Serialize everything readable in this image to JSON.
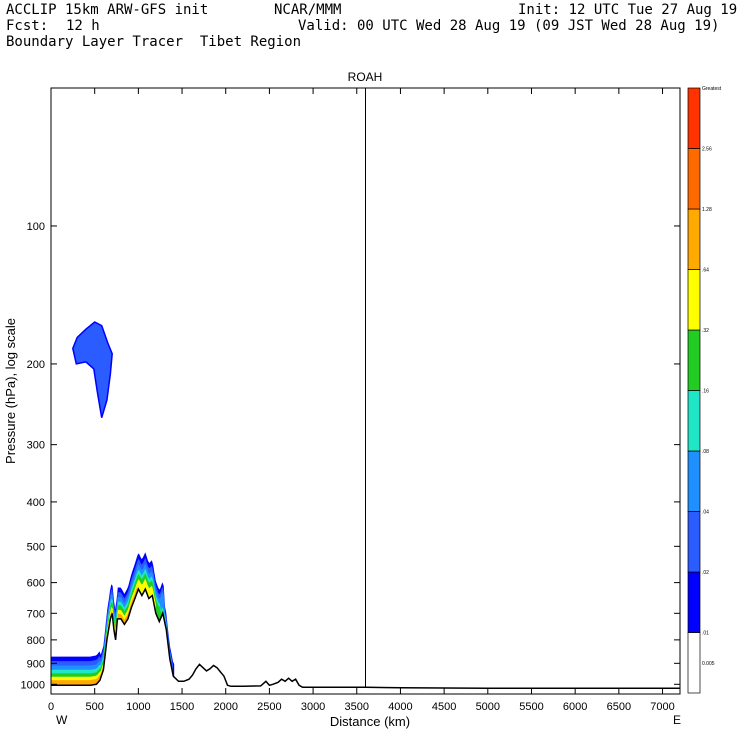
{
  "header": {
    "model": "ACCLIP 15km ARW-GFS init",
    "org": "NCAR/MMM",
    "init": "Init: 12 UTC Tue 27 Aug 19",
    "fcst_label": "Fcst:",
    "fcst_value": "12 h",
    "valid": "Valid: 00 UTC Wed 28 Aug 19 (09 JST Wed 28 Aug 19)",
    "subtitle": "Boundary Layer Tracer  Tibet Region"
  },
  "chart_data": {
    "type": "area",
    "title": "ROAH",
    "xlabel": "Distance (km)",
    "ylabel": "Pressure (hPa), log scale",
    "x_ticks": [
      "0",
      "500",
      "1000",
      "1500",
      "2000",
      "2500",
      "3000",
      "3500",
      "4000",
      "4500",
      "5000",
      "5500",
      "6000",
      "6500",
      "7000"
    ],
    "x_tick_values": [
      0,
      500,
      1000,
      1500,
      2000,
      2500,
      3000,
      3500,
      4000,
      4500,
      5000,
      5500,
      6000,
      6500,
      7000
    ],
    "xlim": [
      0,
      7200
    ],
    "y_ticks": [
      "100",
      "200",
      "300",
      "400",
      "500",
      "600",
      "700",
      "800",
      "900",
      "1000"
    ],
    "y_tick_values": [
      100,
      200,
      300,
      400,
      500,
      600,
      700,
      800,
      900,
      1000
    ],
    "ylim": [
      1050,
      50
    ],
    "y_scale": "log",
    "left_end_label": "W",
    "right_end_label": "E",
    "station_marker_x": 3600,
    "terrain_surface_pressure": {
      "x": [
        0,
        80,
        150,
        250,
        350,
        450,
        520,
        560,
        600,
        640,
        680,
        700,
        720,
        740,
        760,
        800,
        840,
        880,
        920,
        960,
        1000,
        1040,
        1080,
        1120,
        1160,
        1200,
        1240,
        1280,
        1320,
        1360,
        1400,
        1460,
        1520,
        1580,
        1620,
        1660,
        1700,
        1740,
        1780,
        1820,
        1860,
        1900,
        1940,
        1980,
        2020,
        2060,
        2200,
        2400,
        2460,
        2500,
        2540,
        2600,
        2640,
        2680,
        2720,
        2760,
        2800,
        2840,
        2880,
        2960,
        3200,
        3600,
        4000,
        5000,
        6000,
        7000,
        7200
      ],
      "pressure": [
        1005,
        1005,
        1005,
        1005,
        1005,
        1005,
        1000,
        980,
        930,
        800,
        720,
        700,
        760,
        800,
        720,
        720,
        740,
        720,
        680,
        650,
        620,
        640,
        620,
        650,
        640,
        700,
        730,
        700,
        760,
        880,
        960,
        985,
        985,
        975,
        955,
        925,
        905,
        920,
        935,
        925,
        910,
        920,
        940,
        960,
        1005,
        1010,
        1010,
        1008,
        985,
        1005,
        1000,
        990,
        975,
        985,
        970,
        985,
        975,
        1005,
        1015,
        1015,
        1015,
        1015,
        1018,
        1020,
        1020,
        1020,
        1020
      ]
    },
    "tracer_colorbar": {
      "levels": [
        "0.005",
        ".01",
        ".02",
        ".04",
        ".08",
        ".16",
        ".32",
        ".64",
        "1.28",
        "2.56",
        "Greatest"
      ],
      "colors": [
        "#ffffff",
        "#0000ff",
        "#2a5cff",
        "#1e90ff",
        "#20e6c8",
        "#22cc22",
        "#ffff00",
        "#ffaa00",
        "#ff6a00",
        "#ff3300"
      ]
    },
    "tracer_regions": [
      {
        "name": "lower boundary layer plume",
        "x_range": [
          0,
          1450
        ],
        "max_value": "1.28"
      },
      {
        "name": "upper-level patch",
        "x_range": [
          250,
          750
        ],
        "pressure_range": [
          160,
          260
        ],
        "max_value": ".02"
      }
    ]
  }
}
